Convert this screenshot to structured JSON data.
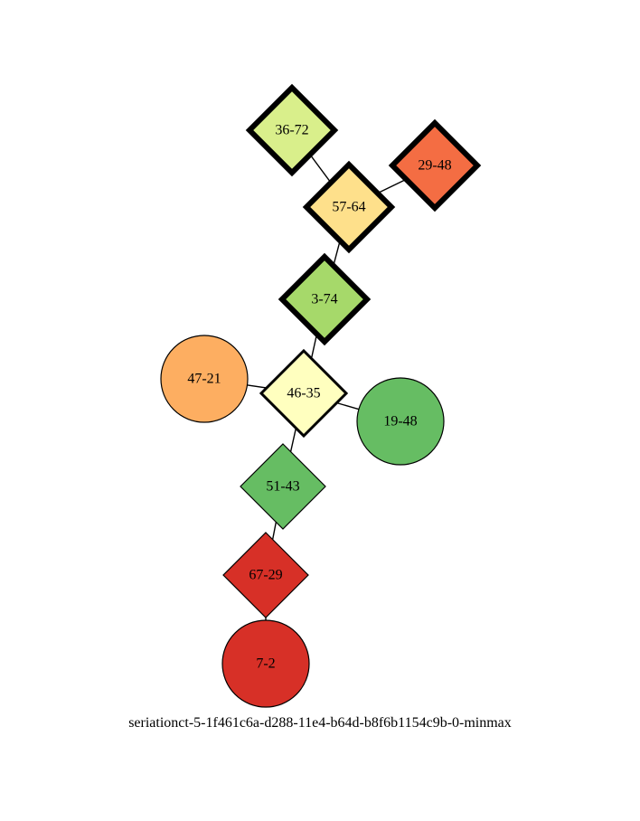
{
  "graph": {
    "caption": "seriationct-5-1f461c6a-d288-11e4-b64d-b8f6b1154c9b-0-minmax",
    "nodes": [
      {
        "id": "36-72",
        "label": "36-72",
        "shape": "diamond",
        "fill": "#d9ef8b",
        "emphasis": "heavy"
      },
      {
        "id": "29-48",
        "label": "29-48",
        "shape": "diamond",
        "fill": "#f46d43",
        "emphasis": "heavy"
      },
      {
        "id": "57-64",
        "label": "57-64",
        "shape": "diamond",
        "fill": "#fee08b",
        "emphasis": "heavy"
      },
      {
        "id": "3-74",
        "label": "3-74",
        "shape": "diamond",
        "fill": "#a6d96a",
        "emphasis": "heavy"
      },
      {
        "id": "47-21",
        "label": "47-21",
        "shape": "circle",
        "fill": "#fdae61",
        "emphasis": "normal"
      },
      {
        "id": "46-35",
        "label": "46-35",
        "shape": "diamond",
        "fill": "#ffffbf",
        "emphasis": "medium"
      },
      {
        "id": "19-48",
        "label": "19-48",
        "shape": "circle",
        "fill": "#66bd63",
        "emphasis": "normal"
      },
      {
        "id": "51-43",
        "label": "51-43",
        "shape": "diamond",
        "fill": "#66bd63",
        "emphasis": "normal"
      },
      {
        "id": "67-29",
        "label": "67-29",
        "shape": "diamond",
        "fill": "#d73027",
        "emphasis": "normal"
      },
      {
        "id": "7-2",
        "label": "7-2",
        "shape": "circle",
        "fill": "#d73027",
        "emphasis": "normal"
      }
    ],
    "edges": [
      {
        "from": "36-72",
        "to": "57-64"
      },
      {
        "from": "29-48",
        "to": "57-64"
      },
      {
        "from": "57-64",
        "to": "3-74"
      },
      {
        "from": "3-74",
        "to": "46-35"
      },
      {
        "from": "47-21",
        "to": "46-35"
      },
      {
        "from": "46-35",
        "to": "19-48"
      },
      {
        "from": "46-35",
        "to": "51-43"
      },
      {
        "from": "51-43",
        "to": "67-29"
      },
      {
        "from": "67-29",
        "to": "7-2"
      }
    ]
  }
}
